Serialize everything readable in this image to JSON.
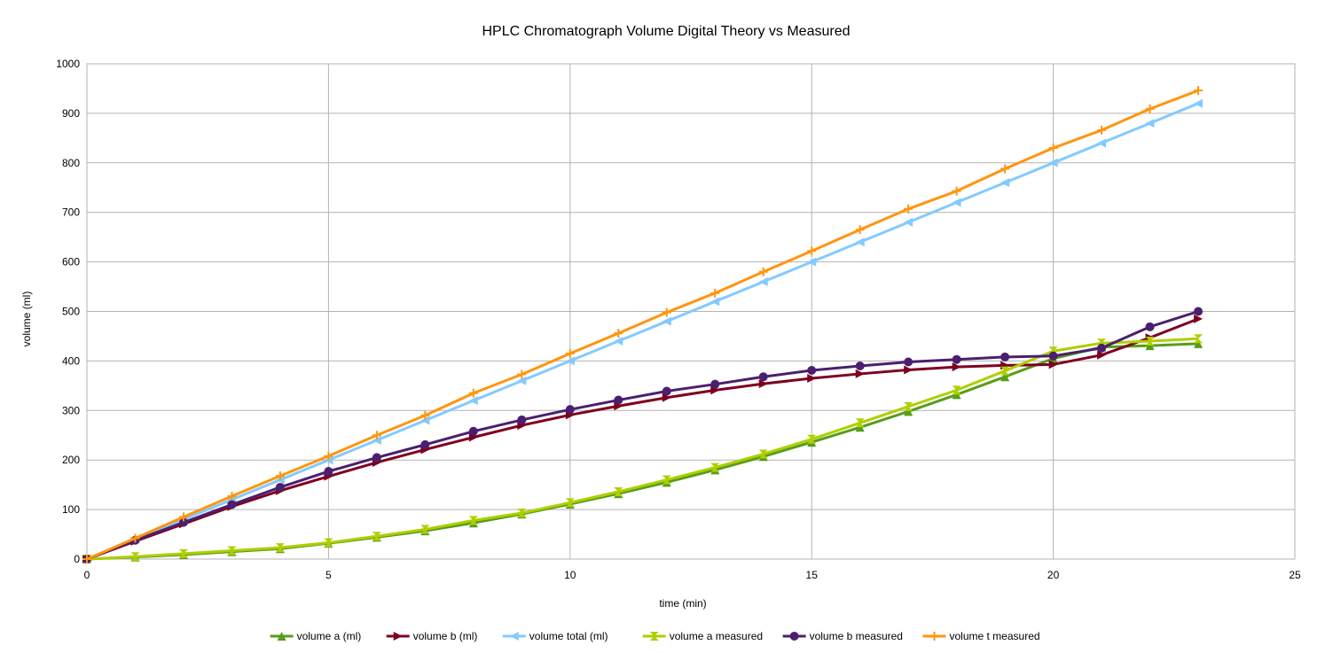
{
  "chart_data": {
    "type": "line",
    "title": "HPLC Chromatograph Volume Digital Theory vs Measured",
    "xlabel": "time (min)",
    "ylabel": "volume (ml)",
    "xlim": [
      0,
      25
    ],
    "ylim": [
      0,
      1000
    ],
    "x_ticks": [
      0,
      5,
      10,
      15,
      20,
      25
    ],
    "y_ticks": [
      0,
      100,
      200,
      300,
      400,
      500,
      600,
      700,
      800,
      900,
      1000
    ],
    "grid": true,
    "legend_position": "bottom",
    "x": [
      0,
      1,
      2,
      3,
      4,
      5,
      6,
      7,
      8,
      9,
      10,
      11,
      12,
      13,
      14,
      15,
      16,
      17,
      18,
      19,
      20,
      21,
      22,
      23
    ],
    "series": [
      {
        "name": "volume a (ml)",
        "color": "#579d1c",
        "marker": "triangle-up",
        "values": [
          0,
          4,
          9,
          15,
          21,
          32,
          44,
          57,
          73,
          91,
          111,
          132,
          155,
          180,
          207,
          236,
          266,
          298,
          332,
          368,
          405,
          428,
          431,
          435
        ]
      },
      {
        "name": "volume b (ml)",
        "color": "#7e0021",
        "marker": "triangle-right",
        "values": [
          0,
          36,
          71,
          106,
          138,
          167,
          195,
          221,
          246,
          270,
          291,
          309,
          326,
          341,
          354,
          365,
          374,
          382,
          388,
          391,
          393,
          412,
          447,
          485
        ]
      },
      {
        "name": "volume total (ml)",
        "color": "#83caff",
        "marker": "triangle-left",
        "values": [
          0,
          40,
          80,
          120,
          160,
          200,
          240,
          280,
          320,
          360,
          400,
          440,
          480,
          520,
          560,
          600,
          640,
          680,
          720,
          760,
          800,
          840,
          880,
          920
        ]
      },
      {
        "name": "volume a measured",
        "color": "#aecf00",
        "marker": "hourglass",
        "values": [
          0,
          5,
          11,
          17,
          23,
          33,
          46,
          60,
          78,
          93,
          114,
          136,
          160,
          185,
          212,
          242,
          275,
          308,
          341,
          380,
          420,
          436,
          440,
          445
        ]
      },
      {
        "name": "volume b measured",
        "color": "#4b1f6f",
        "marker": "circle",
        "values": [
          0,
          38,
          74,
          110,
          145,
          177,
          205,
          231,
          258,
          281,
          302,
          321,
          339,
          353,
          368,
          381,
          390,
          398,
          403,
          408,
          410,
          426,
          469,
          500
        ]
      },
      {
        "name": "volume t measured",
        "color": "#ff950e",
        "marker": "plus",
        "values": [
          0,
          42,
          85,
          127,
          168,
          208,
          250,
          290,
          335,
          373,
          415,
          456,
          498,
          537,
          580,
          622,
          665,
          707,
          743,
          788,
          830,
          866,
          909,
          946
        ]
      }
    ]
  }
}
